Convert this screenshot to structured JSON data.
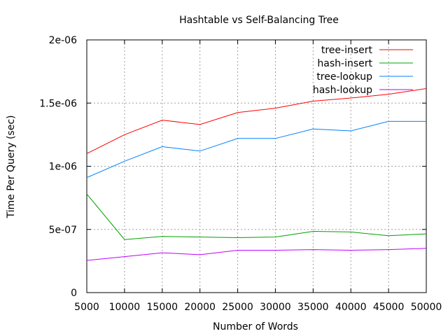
{
  "chart_data": {
    "type": "line",
    "title": "Hashtable vs Self-Balancing Tree",
    "xlabel": "Number of Words",
    "ylabel": "Time Per Query (sec)",
    "x": [
      5000,
      10000,
      15000,
      20000,
      25000,
      30000,
      35000,
      40000,
      45000,
      50000
    ],
    "xlim": [
      5000,
      50000
    ],
    "ylim": [
      0,
      2e-06
    ],
    "x_ticks": [
      "5000",
      "10000",
      "15000",
      "20000",
      "25000",
      "30000",
      "35000",
      "40000",
      "45000",
      "50000"
    ],
    "y_ticks": [
      "0",
      "5e-07",
      "1e-06",
      "1.5e-06",
      "2e-06"
    ],
    "grid": true,
    "legend_position": "top-right",
    "series": [
      {
        "name": "tree-insert",
        "color": "#ff0000",
        "values": [
          1.1e-06,
          1.25e-06,
          1.365e-06,
          1.33e-06,
          1.425e-06,
          1.46e-06,
          1.515e-06,
          1.54e-06,
          1.57e-06,
          1.615e-06
        ]
      },
      {
        "name": "hash-insert",
        "color": "#00a000",
        "values": [
          7.8e-07,
          4.2e-07,
          4.45e-07,
          4.4e-07,
          4.35e-07,
          4.4e-07,
          4.85e-07,
          4.8e-07,
          4.5e-07,
          4.65e-07
        ]
      },
      {
        "name": "tree-lookup",
        "color": "#0080ff",
        "values": [
          9.1e-07,
          1.04e-06,
          1.155e-06,
          1.12e-06,
          1.22e-06,
          1.22e-06,
          1.295e-06,
          1.28e-06,
          1.355e-06,
          1.355e-06
        ]
      },
      {
        "name": "hash-lookup",
        "color": "#c000ff",
        "values": [
          2.55e-07,
          2.85e-07,
          3.15e-07,
          3e-07,
          3.35e-07,
          3.35e-07,
          3.4e-07,
          3.35e-07,
          3.4e-07,
          3.5e-07
        ]
      }
    ]
  }
}
